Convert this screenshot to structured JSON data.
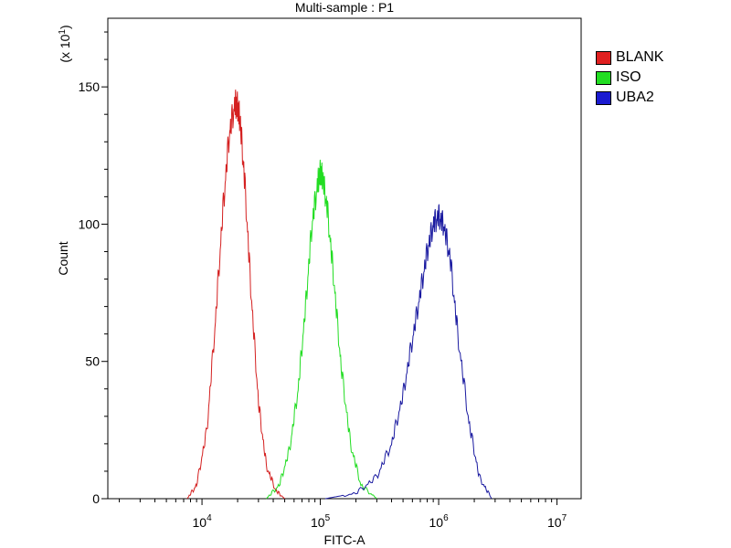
{
  "chart_data": {
    "type": "line",
    "title": "Multi-sample : P1",
    "xlabel": "FITC-A",
    "ylabel": "Count",
    "y_multiplier_label": "(x 10",
    "y_multiplier_exp": "1",
    "x_scale": "log",
    "xlim": [
      1600.0,
      16000000.0
    ],
    "ylim": [
      0,
      175
    ],
    "x_ticks": [
      {
        "value": 10000.0,
        "base": "10",
        "exp": "4"
      },
      {
        "value": 100000.0,
        "base": "10",
        "exp": "5"
      },
      {
        "value": 1000000.0,
        "base": "10",
        "exp": "6"
      },
      {
        "value": 10000000.0,
        "base": "10",
        "exp": "7"
      }
    ],
    "y_ticks": [
      0,
      50,
      100,
      150
    ],
    "y_tick_labels": [
      "0",
      "50",
      "100",
      "150"
    ],
    "grid": false,
    "legend_position": "top-right",
    "series": [
      {
        "name": "BLANK",
        "color": "#d42020",
        "x": [
          7500,
          9000,
          11000,
          13000,
          15000,
          17000,
          19000,
          20000,
          21000,
          23000,
          26000,
          30000,
          35000,
          42000,
          50000
        ],
        "y": [
          0,
          5,
          25,
          65,
          105,
          133,
          144,
          143,
          138,
          115,
          75,
          35,
          12,
          3,
          0
        ]
      },
      {
        "name": "ISO",
        "color": "#22dd22",
        "x": [
          35000,
          45000,
          55000,
          65000,
          75000,
          85000,
          95000,
          100000,
          105000,
          115000,
          130000,
          150000,
          180000,
          220000,
          300000
        ],
        "y": [
          0,
          5,
          18,
          40,
          70,
          100,
          115,
          119,
          117,
          105,
          80,
          48,
          20,
          5,
          0
        ]
      },
      {
        "name": "UBA2",
        "color": "#1a1aa0",
        "x": [
          110000,
          200000,
          300000,
          400000,
          500000,
          600000,
          700000,
          800000,
          900000,
          1000000,
          1100000,
          1250000,
          1450000,
          1800000,
          2200000,
          2800000
        ],
        "y": [
          0,
          2,
          8,
          20,
          38,
          58,
          75,
          90,
          100,
          103,
          100,
          88,
          60,
          28,
          8,
          0
        ]
      }
    ]
  }
}
